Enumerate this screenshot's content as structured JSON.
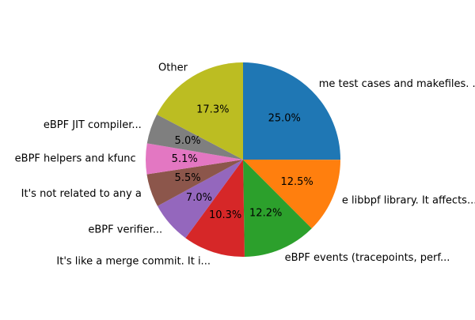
{
  "chart_data": {
    "type": "pie",
    "start_angle_deg": 90,
    "direction": "clockwise",
    "slices": [
      {
        "label": "me test cases and makefiles. ...",
        "value": 25.0,
        "pct_label": "25.0%",
        "color": "#1f77b4"
      },
      {
        "label": "e libbpf library. It affects...",
        "value": 12.5,
        "pct_label": "12.5%",
        "color": "#ff7f0e"
      },
      {
        "label": "eBPF events (tracepoints, perf...",
        "value": 12.2,
        "pct_label": "12.2%",
        "color": "#2ca02c"
      },
      {
        "label": "It's like a merge commit. It i...",
        "value": 10.3,
        "pct_label": "10.3%",
        "color": "#d62728"
      },
      {
        "label": "eBPF verifier...",
        "value": 7.0,
        "pct_label": "7.0%",
        "color": "#9467bd"
      },
      {
        "label": "It's not related to any a",
        "value": 5.5,
        "pct_label": "5.5%",
        "color": "#8c564b"
      },
      {
        "label": "eBPF helpers and kfunc",
        "value": 5.1,
        "pct_label": "5.1%",
        "color": "#e377c2"
      },
      {
        "label": "eBPF JIT compiler...",
        "value": 5.0,
        "pct_label": "5.0%",
        "color": "#7f7f7f"
      },
      {
        "label": "Other",
        "value": 17.3,
        "pct_label": "17.3%",
        "color": "#bcbd22"
      }
    ]
  }
}
